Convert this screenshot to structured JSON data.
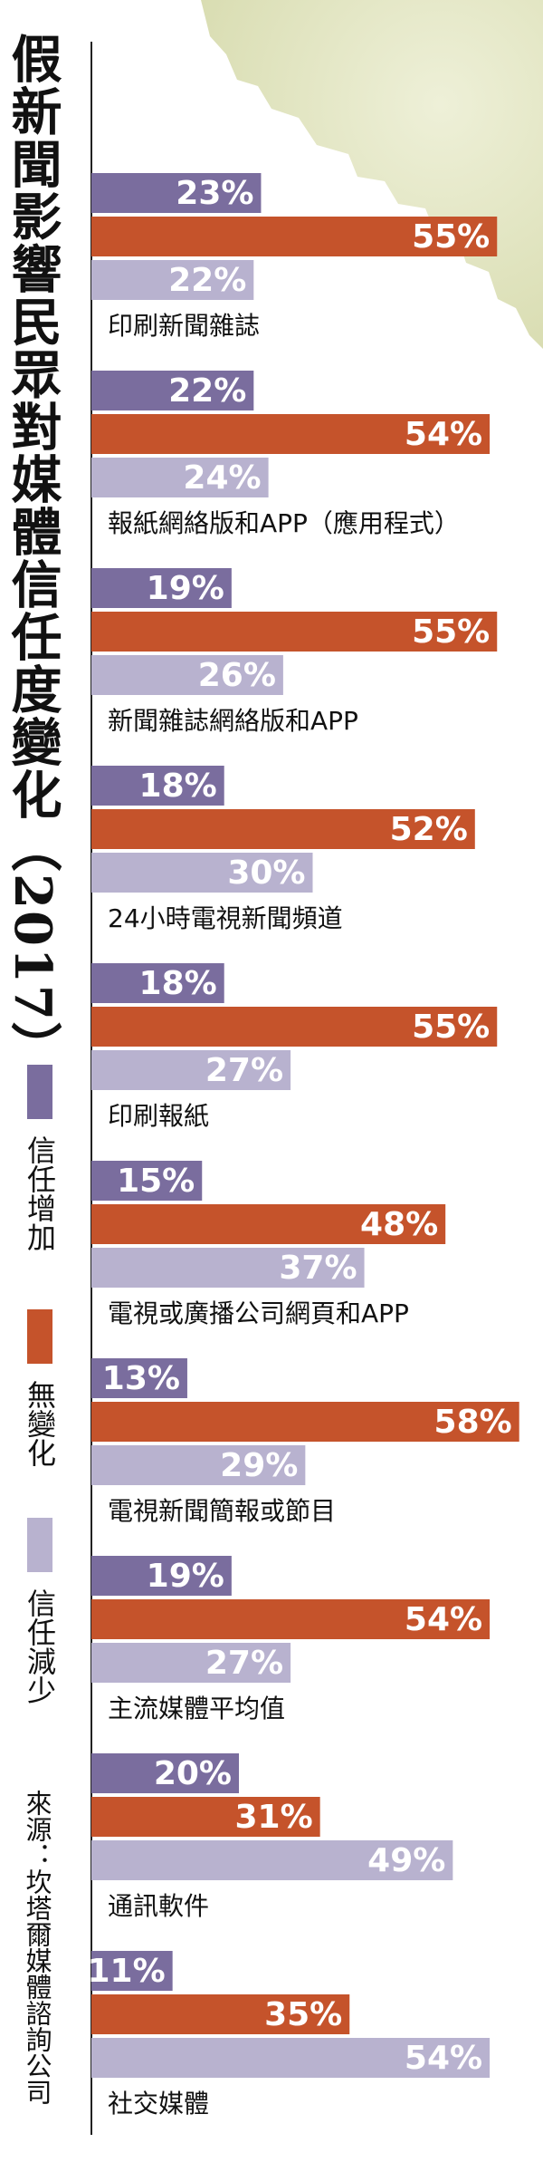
{
  "chart_data": {
    "type": "bar",
    "orientation": "horizontal",
    "title": "假新聞影響民眾對媒體信任度變化（2017）",
    "source": "來源：坎塔爾媒體諮詢公司",
    "categories": [
      "印刷新聞雜誌",
      "報紙網絡版和APP（應用程式）",
      "新聞雜誌網絡版和APP",
      "24小時電視新聞頻道",
      "印刷報紙",
      "電視或廣播公司網頁和APP",
      "電視新聞簡報或節目",
      "主流媒體平均值",
      "通訊軟件",
      "社交媒體"
    ],
    "series": [
      {
        "name": "信任增加",
        "color": "#7a6d9e",
        "values": [
          23,
          22,
          19,
          18,
          18,
          15,
          13,
          19,
          20,
          11
        ],
        "value_labels": [
          "23%",
          "22%",
          "19%",
          "18%",
          "18%",
          "15%",
          "13%",
          "19%",
          "20%",
          "11%"
        ]
      },
      {
        "name": "無變化",
        "color": "#c5532b",
        "values": [
          55,
          54,
          55,
          52,
          55,
          48,
          58,
          54,
          31,
          35
        ],
        "value_labels": [
          "55%",
          "54%",
          "55%",
          "52%",
          "55%",
          "48%",
          "58%",
          "54%",
          "31%",
          "35%"
        ]
      },
      {
        "name": "信任減少",
        "color": "#b8b2cf",
        "values": [
          22,
          24,
          26,
          30,
          27,
          37,
          29,
          27,
          49,
          54
        ],
        "value_labels": [
          "22%",
          "24%",
          "26%",
          "30%",
          "27%",
          "37%",
          "29%",
          "27%",
          "49%",
          "54%"
        ]
      }
    ]
  }
}
